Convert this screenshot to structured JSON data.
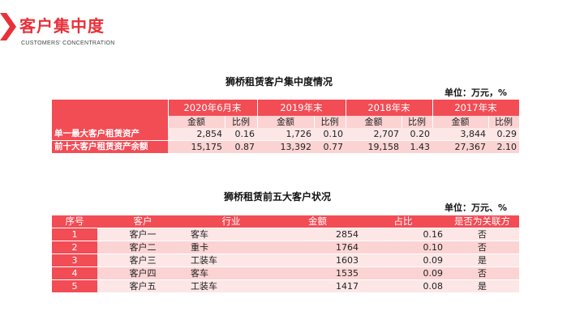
{
  "header": {
    "title": "客户集中度",
    "subtitle": "CUSTOMERS' CONCENTRATION",
    "accent": "#e8303a"
  },
  "table1": {
    "title": "狮桥租赁客户集中度情况",
    "unit": "单位：万元，%",
    "periods": [
      "2020年6月末",
      "2019年末",
      "2018年末",
      "2017年末"
    ],
    "subheaders": [
      "金额",
      "比例"
    ],
    "rows": [
      {
        "label": "单一最大客户租赁资产",
        "values": [
          "2,854",
          "0.16",
          "1,726",
          "0.10",
          "2,707",
          "0.20",
          "3,844",
          "0.29"
        ]
      },
      {
        "label": "前十大客户租赁资产余额",
        "values": [
          "15,175",
          "0.87",
          "13,392",
          "0.77",
          "19,158",
          "1.43",
          "27,367",
          "2.10"
        ]
      }
    ]
  },
  "table2": {
    "title": "狮桥租赁前五大客户状况",
    "unit": "单位：万元、%",
    "headers": [
      "序号",
      "客户",
      "行业",
      "金额",
      "占比",
      "是否为关联方"
    ],
    "rows": [
      {
        "no": "1",
        "customer": "客户一",
        "industry": "客车",
        "amount": "2854",
        "ratio": "0.16",
        "related": "否"
      },
      {
        "no": "2",
        "customer": "客户二",
        "industry": "重卡",
        "amount": "1764",
        "ratio": "0.10",
        "related": "否"
      },
      {
        "no": "3",
        "customer": "客户三",
        "industry": "工装车",
        "amount": "1603",
        "ratio": "0.09",
        "related": "是"
      },
      {
        "no": "4",
        "customer": "客户四",
        "industry": "客车",
        "amount": "1535",
        "ratio": "0.09",
        "related": "否"
      },
      {
        "no": "5",
        "customer": "客户五",
        "industry": "工装车",
        "amount": "1417",
        "ratio": "0.08",
        "related": "是"
      }
    ]
  }
}
